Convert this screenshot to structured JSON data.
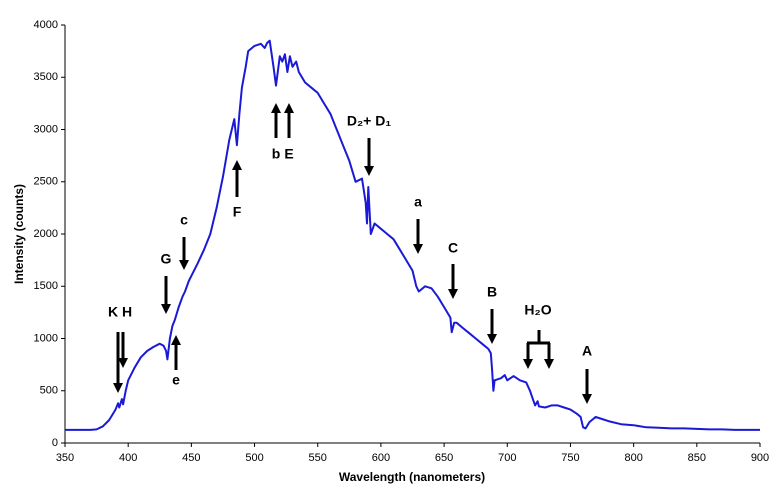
{
  "chart_data": {
    "type": "line",
    "x_label": "Wavelength (nanometers)",
    "y_label": "Intensity (counts)",
    "xlim": [
      350,
      900
    ],
    "xticks": [
      350,
      400,
      450,
      500,
      550,
      600,
      650,
      700,
      750,
      800,
      850,
      900
    ],
    "ylim": [
      0,
      4000
    ],
    "yticks": [
      0,
      500,
      1000,
      1500,
      2000,
      2500,
      3000,
      3500,
      4000
    ],
    "grid": false,
    "color": "#1a1ad6",
    "x": [
      350,
      360,
      370,
      375,
      380,
      385,
      390,
      392,
      393,
      395,
      396,
      398,
      400,
      405,
      410,
      415,
      420,
      425,
      428,
      430,
      431,
      433,
      435,
      437,
      440,
      443,
      445,
      448,
      450,
      455,
      460,
      465,
      470,
      475,
      480,
      484,
      486,
      488,
      490,
      493,
      495,
      500,
      505,
      508,
      510,
      512,
      515,
      517,
      520,
      522,
      524,
      526,
      528,
      530,
      533,
      535,
      540,
      545,
      550,
      555,
      560,
      565,
      570,
      575,
      580,
      585,
      588,
      589,
      590,
      592,
      595,
      600,
      605,
      610,
      615,
      620,
      625,
      628,
      630,
      635,
      640,
      645,
      650,
      655,
      656,
      658,
      660,
      665,
      670,
      675,
      680,
      685,
      687,
      688,
      689,
      690,
      695,
      698,
      700,
      705,
      710,
      715,
      718,
      720,
      722,
      724,
      725,
      730,
      735,
      740,
      745,
      750,
      755,
      758,
      760,
      762,
      765,
      770,
      775,
      780,
      790,
      800,
      810,
      820,
      830,
      840,
      850,
      860,
      870,
      880,
      890,
      900
    ],
    "values": [
      125,
      125,
      125,
      130,
      160,
      220,
      320,
      380,
      340,
      420,
      370,
      500,
      600,
      720,
      820,
      880,
      920,
      950,
      930,
      880,
      800,
      1000,
      1120,
      1180,
      1300,
      1400,
      1450,
      1550,
      1600,
      1720,
      1850,
      2000,
      2250,
      2550,
      2900,
      3100,
      2850,
      3150,
      3400,
      3600,
      3750,
      3800,
      3820,
      3780,
      3830,
      3850,
      3600,
      3420,
      3700,
      3650,
      3720,
      3550,
      3700,
      3600,
      3650,
      3550,
      3450,
      3400,
      3350,
      3250,
      3150,
      3000,
      2850,
      2700,
      2500,
      2530,
      2300,
      2100,
      2450,
      2000,
      2100,
      2050,
      2000,
      1950,
      1850,
      1750,
      1650,
      1500,
      1450,
      1500,
      1480,
      1400,
      1300,
      1200,
      1060,
      1150,
      1150,
      1100,
      1050,
      1000,
      950,
      900,
      860,
      700,
      500,
      600,
      620,
      650,
      600,
      640,
      600,
      580,
      500,
      430,
      360,
      400,
      350,
      340,
      360,
      360,
      340,
      320,
      280,
      250,
      150,
      140,
      200,
      250,
      230,
      210,
      180,
      170,
      150,
      145,
      140,
      140,
      135,
      130,
      130,
      125,
      125,
      125
    ],
    "annotations": [
      "K",
      "H",
      "e",
      "G",
      "c",
      "F",
      "b",
      "E",
      "D₂+ D₁",
      "a",
      "C",
      "B",
      "H₂O",
      "A"
    ]
  }
}
